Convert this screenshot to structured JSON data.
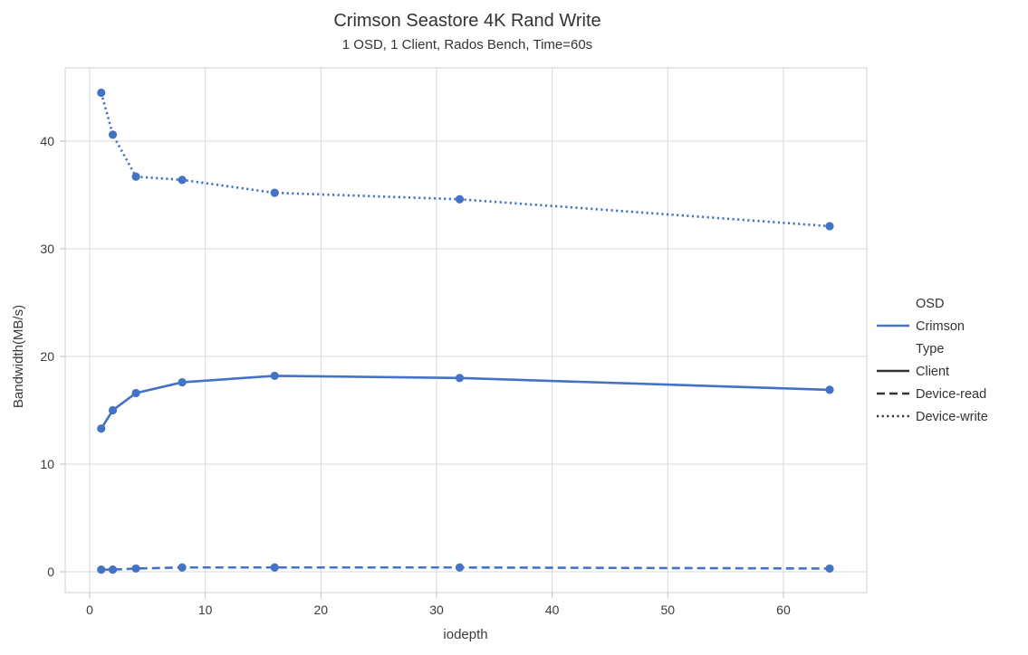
{
  "chart_data": {
    "type": "line",
    "title": "Crimson Seastore 4K Rand Write",
    "subtitle": "1 OSD, 1 Client, Rados Bench, Time=60s",
    "xlabel": "iodepth",
    "ylabel": "Bandwidth(MB/s)",
    "x": [
      1,
      2,
      4,
      8,
      16,
      32,
      64
    ],
    "series": [
      {
        "name": "Device-write",
        "line_style": "dotted",
        "values": [
          44.5,
          40.6,
          36.7,
          36.4,
          35.2,
          34.6,
          32.1
        ]
      },
      {
        "name": "Client",
        "line_style": "solid",
        "values": [
          13.3,
          15.0,
          16.6,
          17.6,
          18.2,
          18.0,
          16.9
        ]
      },
      {
        "name": "Device-read",
        "line_style": "dashed",
        "values": [
          0.2,
          0.2,
          0.3,
          0.4,
          0.4,
          0.4,
          0.3
        ]
      }
    ],
    "series_color": "#4472c4",
    "xticks": [
      0,
      10,
      20,
      30,
      40,
      50,
      60
    ],
    "yticks": [
      0,
      10,
      20,
      30,
      40
    ],
    "xlim": [
      -2.1,
      67.2
    ],
    "ylim": [
      -1.9,
      46.8
    ],
    "grid": true,
    "legend": {
      "position": "right",
      "entries": [
        {
          "label": "OSD",
          "kind": "header"
        },
        {
          "label": "Crimson",
          "kind": "line",
          "style": "solid",
          "color": "#4472c4"
        },
        {
          "label": "Type",
          "kind": "header"
        },
        {
          "label": "Client",
          "kind": "line",
          "style": "solid",
          "color": "#333333"
        },
        {
          "label": "Device-read",
          "kind": "line",
          "style": "dashed",
          "color": "#333333"
        },
        {
          "label": "Device-write",
          "kind": "line",
          "style": "dotted",
          "color": "#333333"
        }
      ]
    }
  },
  "colors": {
    "grid": "#d9d9d9",
    "plot_border": "#cfcfcf",
    "tick_mark": "#bfbfbf",
    "text": "#333333"
  }
}
